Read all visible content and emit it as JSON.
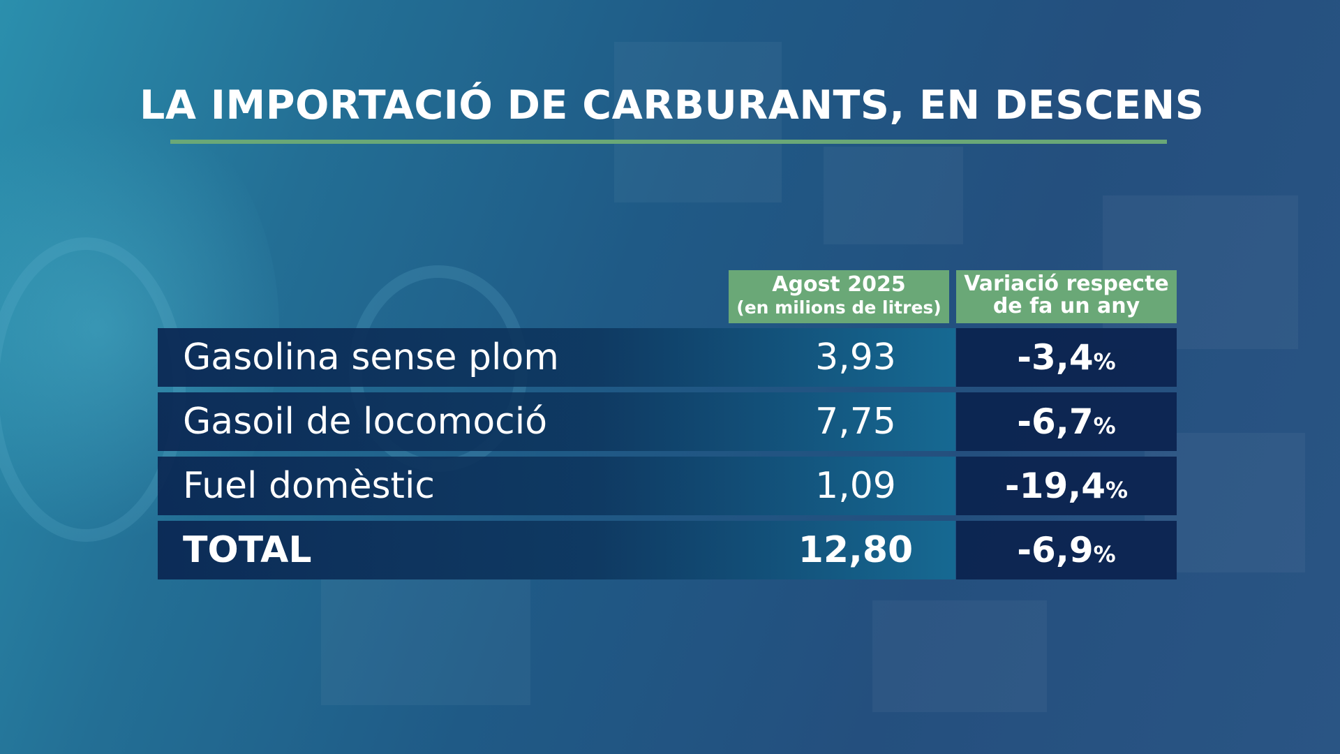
{
  "title": "LA IMPORTACIÓ DE CARBURANTS, EN DESCENS",
  "colors": {
    "accent_green": "#6aa877",
    "row_dark": "#0c2450",
    "text": "#ffffff"
  },
  "columns": {
    "value_line1": "Agost 2025",
    "value_line2": "(en milions de litres)",
    "variation_line1": "Variació respecte",
    "variation_line2": "de fa un any"
  },
  "chart_data": {
    "type": "table",
    "title": "LA IMPORTACIÓ DE CARBURANTS, EN DESCENS",
    "columns": [
      "Agost 2025 (en milions de litres)",
      "Variació respecte de fa un any"
    ],
    "rows": [
      {
        "label": "Gasolina sense plom",
        "value": "3,93",
        "variation": "-3,4",
        "variation_unit": "%"
      },
      {
        "label": "Gasoil de locomoció",
        "value": "7,75",
        "variation": "-6,7",
        "variation_unit": "%"
      },
      {
        "label": "Fuel domèstic",
        "value": "1,09",
        "variation": "-19,4",
        "variation_unit": "%"
      },
      {
        "label": "TOTAL",
        "value": "12,80",
        "variation": "-6,9",
        "variation_unit": "%"
      }
    ]
  }
}
